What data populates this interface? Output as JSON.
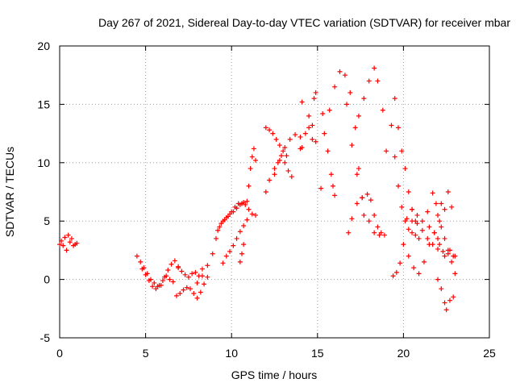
{
  "chart_data": {
    "type": "scatter",
    "title": "Day 267 of 2021, Sidereal Day-to-day VTEC variation (SDTVAR) for receiver mbar",
    "xlabel": "GPS time / hours",
    "ylabel": "SDTVAR / TECUs",
    "xlim": [
      0,
      25
    ],
    "ylim": [
      -5,
      20
    ],
    "xticks": [
      "0",
      "5",
      "10",
      "15",
      "20",
      "25"
    ],
    "yticks": [
      "-5",
      "0",
      "5",
      "10",
      "15",
      "20"
    ],
    "grid": true,
    "marker": "+",
    "color": "#ff0000",
    "series": [
      {
        "name": "early",
        "x": [
          0.0,
          0.1,
          0.2,
          0.3,
          0.4,
          0.5,
          0.6,
          0.7,
          0.8,
          0.9,
          1.0
        ],
        "y": [
          3.0,
          3.3,
          2.9,
          3.6,
          2.5,
          3.8,
          3.2,
          3.5,
          2.9,
          3.0,
          3.1
        ]
      },
      {
        "name": "s1",
        "x": [
          4.5,
          4.7,
          4.9,
          5.1,
          5.3,
          5.5,
          5.7,
          5.9,
          6.1,
          6.3,
          6.5,
          6.7,
          6.9
        ],
        "y": [
          2.0,
          1.5,
          1.0,
          0.5,
          0.0,
          -0.3,
          -0.6,
          -0.5,
          0.2,
          0.8,
          1.3,
          1.6,
          1.1
        ]
      },
      {
        "name": "s2",
        "x": [
          4.8,
          5.0,
          5.2,
          5.4,
          5.6,
          5.8,
          6.0,
          6.2,
          6.4,
          6.6
        ],
        "y": [
          0.9,
          0.4,
          -0.1,
          -0.6,
          -0.8,
          -0.5,
          -0.1,
          0.3,
          0.0,
          -0.2
        ]
      },
      {
        "name": "s3",
        "x": [
          6.8,
          7.0,
          7.2,
          7.4,
          7.6,
          7.8,
          8.0,
          8.2,
          8.4,
          8.6
        ],
        "y": [
          -1.4,
          -1.2,
          -0.9,
          -0.7,
          -0.8,
          -1.2,
          -1.6,
          -1.1,
          -0.4,
          0.2
        ]
      },
      {
        "name": "s4",
        "x": [
          6.9,
          7.1,
          7.3,
          7.5,
          7.7,
          7.9,
          8.1,
          8.3
        ],
        "y": [
          1.0,
          0.7,
          0.4,
          0.2,
          0.5,
          0.6,
          0.3,
          0.9
        ]
      },
      {
        "name": "s5",
        "x": [
          8.0,
          8.3,
          8.6,
          8.9,
          9.1,
          9.3,
          9.5,
          9.7,
          9.9,
          10.1,
          10.3,
          10.5,
          10.7,
          10.9
        ],
        "y": [
          -0.3,
          0.3,
          1.2,
          2.2,
          3.5,
          4.5,
          5.0,
          5.3,
          5.6,
          5.8,
          6.1,
          6.4,
          6.6,
          6.7
        ]
      },
      {
        "name": "s6",
        "x": [
          9.2,
          9.4,
          9.6,
          9.8,
          10.0,
          10.2,
          10.4,
          10.6,
          10.8
        ],
        "y": [
          4.2,
          4.8,
          5.1,
          5.4,
          5.8,
          6.2,
          6.5,
          6.5,
          6.4
        ]
      },
      {
        "name": "s7",
        "x": [
          9.5,
          9.7,
          9.9,
          10.1,
          10.3,
          10.5,
          10.7,
          10.9
        ],
        "y": [
          1.4,
          2.0,
          2.4,
          2.9,
          3.5,
          4.1,
          4.6,
          5.1
        ]
      },
      {
        "name": "s8",
        "x": [
          10.5,
          10.6,
          10.7
        ],
        "y": [
          1.5,
          2.2,
          3.0
        ]
      },
      {
        "name": "s9",
        "x": [
          11.0,
          11.1,
          11.2,
          11.3,
          11.4
        ],
        "y": [
          8.0,
          9.5,
          10.5,
          11.2,
          10.2
        ]
      },
      {
        "name": "s10",
        "x": [
          11.0,
          11.2,
          11.4
        ],
        "y": [
          6.0,
          5.6,
          5.5
        ]
      },
      {
        "name": "s11",
        "x": [
          12.0,
          12.2,
          12.5,
          12.8,
          13.1,
          13.4,
          13.7,
          14.0
        ],
        "y": [
          7.5,
          8.5,
          9.5,
          10.2,
          11.3,
          12.0,
          12.4,
          12.2
        ]
      },
      {
        "name": "s12",
        "x": [
          12.0,
          12.2,
          12.4,
          12.6,
          12.8,
          13.0,
          13.2
        ],
        "y": [
          13.0,
          12.8,
          12.5,
          12.0,
          11.5,
          11.0,
          10.6
        ]
      },
      {
        "name": "s13",
        "x": [
          12.5,
          12.7,
          12.9,
          13.1,
          13.3,
          13.5
        ],
        "y": [
          9.0,
          10.0,
          10.6,
          10.0,
          9.3,
          8.8
        ]
      },
      {
        "name": "s14",
        "x": [
          14.0,
          14.1,
          14.3,
          14.5,
          14.7,
          14.8,
          14.9
        ],
        "y": [
          11.2,
          11.3,
          12.5,
          13.0,
          13.2,
          15.5,
          16.0
        ]
      },
      {
        "name": "s15",
        "x": [
          14.1,
          14.5,
          14.7,
          14.9
        ],
        "y": [
          15.2,
          14.0,
          12.0,
          11.8
        ]
      },
      {
        "name": "s16",
        "x": [
          15.2,
          15.3,
          15.6,
          15.8,
          15.9,
          16.0
        ],
        "y": [
          7.8,
          14.2,
          11.0,
          9.0,
          8.0,
          7.2
        ]
      },
      {
        "name": "s17",
        "x": [
          15.4,
          15.7,
          16.0,
          16.3,
          16.6,
          16.9,
          17.2,
          17.4,
          17.7
        ],
        "y": [
          12.5,
          14.5,
          16.5,
          17.8,
          17.5,
          16.0,
          13.0,
          9.5,
          5.5
        ]
      },
      {
        "name": "s18",
        "x": [
          16.7,
          17.0,
          17.3,
          17.6,
          18.0,
          18.3,
          18.6,
          18.9
        ],
        "y": [
          15.0,
          11.5,
          9.0,
          7.0,
          5.0,
          4.0,
          3.8,
          3.8
        ]
      },
      {
        "name": "s19",
        "x": [
          16.8,
          17.0,
          17.3,
          17.6,
          17.9,
          18.1,
          18.3,
          18.5,
          18.7
        ],
        "y": [
          4.0,
          5.2,
          6.5,
          7.0,
          7.3,
          6.8,
          5.5,
          4.5,
          4.0
        ]
      },
      {
        "name": "s20",
        "x": [
          17.4,
          17.7,
          18.0,
          18.3,
          18.5,
          18.8,
          19.0
        ],
        "y": [
          14.0,
          15.5,
          17.0,
          18.1,
          17.0,
          14.5,
          11.0
        ]
      },
      {
        "name": "s21",
        "x": [
          19.3,
          19.5,
          19.7,
          19.9,
          20.1,
          20.3,
          20.5,
          20.7,
          20.9
        ],
        "y": [
          13.2,
          10.5,
          8.0,
          6.2,
          5.0,
          4.3,
          4.0,
          3.8,
          3.5
        ]
      },
      {
        "name": "s22",
        "x": [
          19.5,
          19.7,
          19.9,
          20.1,
          20.3,
          20.5,
          20.7
        ],
        "y": [
          15.5,
          13.0,
          11.0,
          9.5,
          7.5,
          6.0,
          5.0
        ]
      },
      {
        "name": "s23",
        "x": [
          19.4,
          19.6,
          19.8
        ],
        "y": [
          0.3,
          0.6,
          1.4
        ]
      },
      {
        "name": "s24",
        "x": [
          20.0,
          20.3,
          20.6,
          20.9,
          21.2,
          21.5,
          21.8,
          22.0
        ],
        "y": [
          3.0,
          2.0,
          1.0,
          0.5,
          1.5,
          3.0,
          4.0,
          3.5
        ]
      },
      {
        "name": "s25",
        "x": [
          20.2,
          20.5,
          20.8,
          21.1,
          21.4,
          21.7,
          22.0,
          22.3,
          22.6,
          22.9
        ],
        "y": [
          5.2,
          5.0,
          4.8,
          4.2,
          3.5,
          3.0,
          2.6,
          2.4,
          2.2,
          2.0
        ]
      },
      {
        "name": "s26",
        "x": [
          20.5,
          20.8,
          21.1,
          21.4,
          21.7,
          21.9,
          22.1
        ],
        "y": [
          6.0,
          5.5,
          5.0,
          5.8,
          7.4,
          6.5,
          5.0
        ]
      },
      {
        "name": "s27",
        "x": [
          22.0,
          22.2,
          22.4,
          22.6,
          22.8,
          23.0
        ],
        "y": [
          5.5,
          4.5,
          3.5,
          2.5,
          1.5,
          0.5
        ]
      },
      {
        "name": "s28",
        "x": [
          22.0,
          22.2,
          22.4,
          22.5,
          22.7,
          22.9
        ],
        "y": [
          0.0,
          -0.8,
          -2.0,
          -2.6,
          -1.8,
          -1.5
        ]
      },
      {
        "name": "s29",
        "x": [
          22.2,
          22.4,
          22.6,
          22.8
        ],
        "y": [
          6.5,
          6.0,
          7.5,
          6.2
        ]
      },
      {
        "name": "s30",
        "x": [
          21.5,
          21.8,
          22.1,
          22.4,
          22.7,
          23.0
        ],
        "y": [
          4.5,
          4.0,
          3.0,
          2.0,
          2.5,
          2.0
        ]
      }
    ]
  }
}
